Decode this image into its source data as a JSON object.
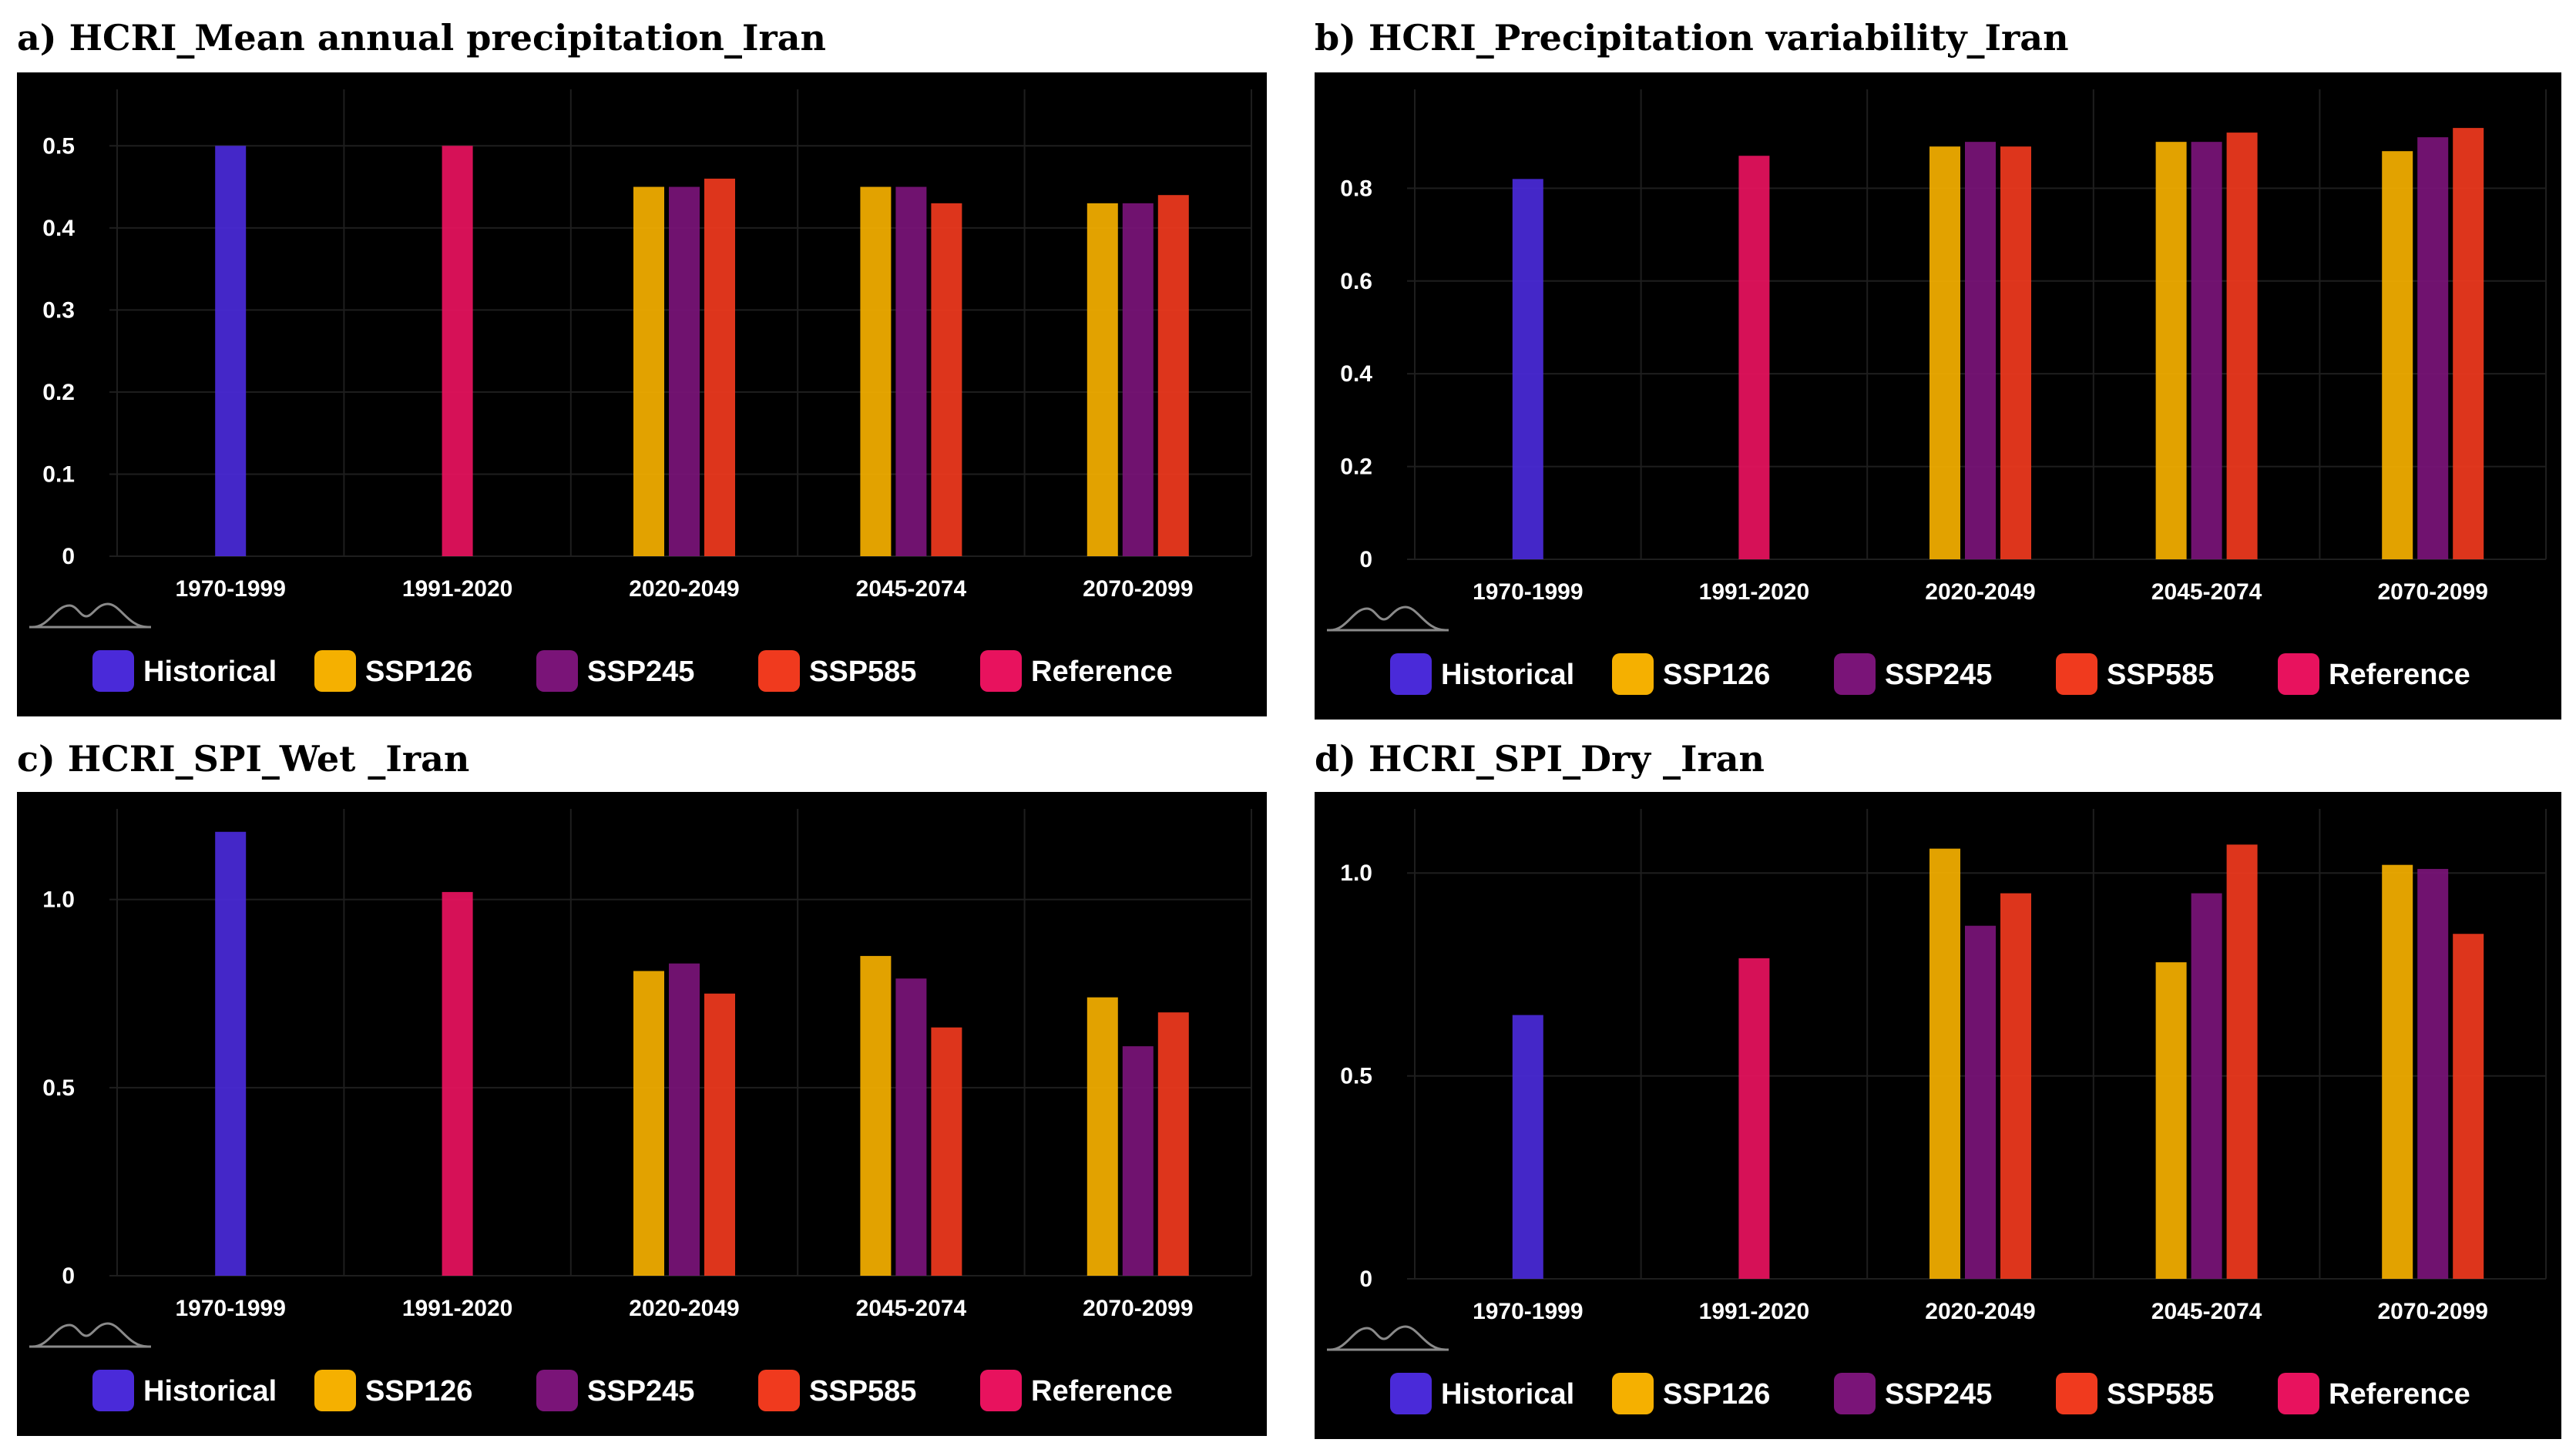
{
  "legend": {
    "items": [
      {
        "name": "Historical",
        "color": "#4A2AD9"
      },
      {
        "name": "SSP126",
        "color": "#F5B000"
      },
      {
        "name": "SSP245",
        "color": "#7A1478"
      },
      {
        "name": "SSP585",
        "color": "#F03A1E"
      },
      {
        "name": "Reference",
        "color": "#E8125E"
      }
    ]
  },
  "chart_data": [
    {
      "panel_id": "a",
      "title": "a) HCRI_Mean annual precipitation_Iran",
      "type": "bar",
      "categories": [
        "1970-1999",
        "1991-2020",
        "2020-2049",
        "2045-2074",
        "2070-2099"
      ],
      "ylim": [
        0,
        0.55
      ],
      "yticks": [
        0,
        0.1,
        0.2,
        0.3,
        0.4,
        0.5
      ],
      "ytick_labels": [
        "0",
        "0.1",
        "0.2",
        "0.3",
        "0.4",
        "0.5"
      ],
      "grid": true,
      "series": [
        {
          "name": "Historical",
          "values": [
            0.5,
            null,
            null,
            null,
            null
          ]
        },
        {
          "name": "SSP126",
          "values": [
            null,
            null,
            0.45,
            0.45,
            0.43
          ]
        },
        {
          "name": "SSP245",
          "values": [
            null,
            null,
            0.45,
            0.45,
            0.43
          ]
        },
        {
          "name": "SSP585",
          "values": [
            null,
            null,
            0.46,
            0.43,
            0.44
          ]
        },
        {
          "name": "Reference",
          "values": [
            null,
            0.5,
            null,
            null,
            null
          ]
        }
      ]
    },
    {
      "panel_id": "b",
      "title": "b) HCRI_Precipitation variability_Iran",
      "type": "bar",
      "categories": [
        "1970-1999",
        "1991-2020",
        "2020-2049",
        "2045-2074",
        "2070-2099"
      ],
      "ylim": [
        0,
        0.98
      ],
      "yticks": [
        0,
        0.2,
        0.4,
        0.6,
        0.8
      ],
      "ytick_labels": [
        "0",
        "0.2",
        "0.4",
        "0.6",
        "0.8"
      ],
      "grid": true,
      "series": [
        {
          "name": "Historical",
          "values": [
            0.82,
            null,
            null,
            null,
            null
          ]
        },
        {
          "name": "SSP126",
          "values": [
            null,
            null,
            0.89,
            0.9,
            0.88
          ]
        },
        {
          "name": "SSP245",
          "values": [
            null,
            null,
            0.9,
            0.9,
            0.91
          ]
        },
        {
          "name": "SSP585",
          "values": [
            null,
            null,
            0.89,
            0.92,
            0.93
          ]
        },
        {
          "name": "Reference",
          "values": [
            null,
            0.87,
            null,
            null,
            null
          ]
        }
      ]
    },
    {
      "panel_id": "c",
      "title": "c) HCRI_SPI_Wet _Iran",
      "type": "bar",
      "categories": [
        "1970-1999",
        "1991-2020",
        "2020-2049",
        "2045-2074",
        "2070-2099"
      ],
      "ylim": [
        0,
        1.2
      ],
      "yticks": [
        0,
        0.5,
        1.0
      ],
      "ytick_labels": [
        "0",
        "0.5",
        "1.0"
      ],
      "grid": true,
      "series": [
        {
          "name": "Historical",
          "values": [
            1.18,
            null,
            null,
            null,
            null
          ]
        },
        {
          "name": "SSP126",
          "values": [
            null,
            null,
            0.81,
            0.85,
            0.74
          ]
        },
        {
          "name": "SSP245",
          "values": [
            null,
            null,
            0.83,
            0.79,
            0.61
          ]
        },
        {
          "name": "SSP585",
          "values": [
            null,
            null,
            0.75,
            0.66,
            0.7
          ]
        },
        {
          "name": "Reference",
          "values": [
            null,
            1.02,
            null,
            null,
            null
          ]
        }
      ]
    },
    {
      "panel_id": "d",
      "title": "d) HCRI_SPI_Dry _Iran",
      "type": "bar",
      "categories": [
        "1970-1999",
        "1991-2020",
        "2020-2049",
        "2045-2074",
        "2070-2099"
      ],
      "ylim": [
        0,
        1.12
      ],
      "yticks": [
        0,
        0.5,
        1.0
      ],
      "ytick_labels": [
        "0",
        "0.5",
        "1.0"
      ],
      "grid": true,
      "series": [
        {
          "name": "Historical",
          "values": [
            0.65,
            null,
            null,
            null,
            null
          ]
        },
        {
          "name": "SSP126",
          "values": [
            null,
            null,
            1.06,
            0.78,
            1.02
          ]
        },
        {
          "name": "SSP245",
          "values": [
            null,
            null,
            0.87,
            0.95,
            1.01
          ]
        },
        {
          "name": "SSP585",
          "values": [
            null,
            null,
            0.95,
            1.07,
            0.85
          ]
        },
        {
          "name": "Reference",
          "values": [
            null,
            0.79,
            null,
            null,
            null
          ]
        }
      ]
    }
  ]
}
